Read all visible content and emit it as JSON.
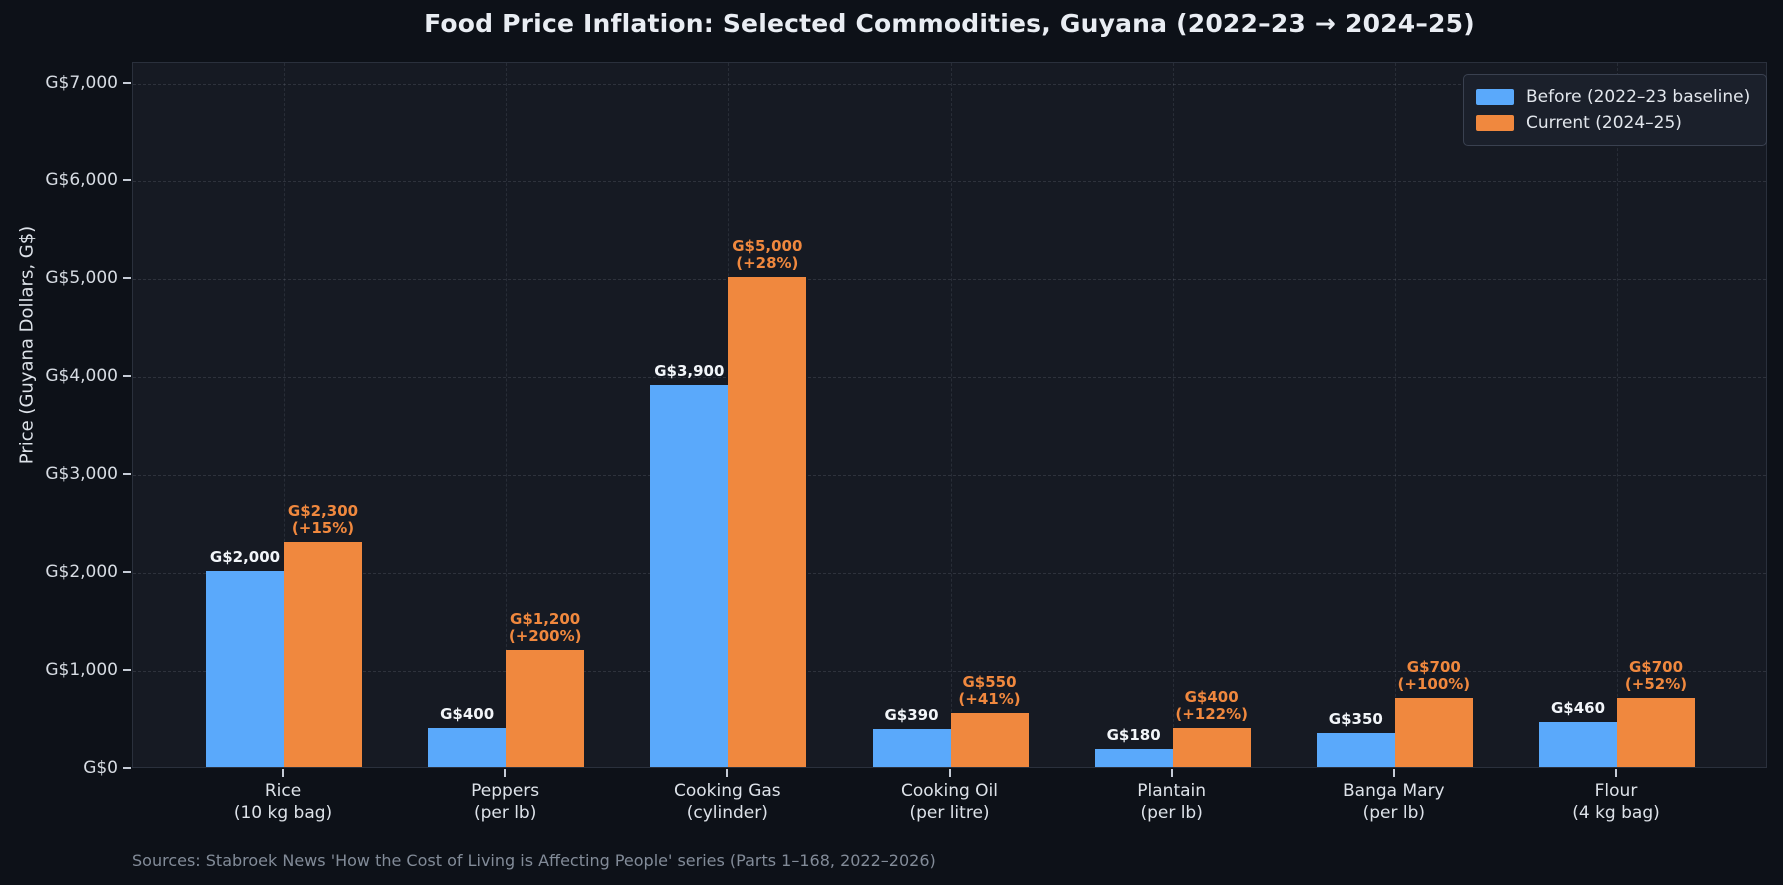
{
  "title": "Food Price Inflation: Selected Commodities, Guyana (2022–23 → 2024–25)",
  "y_axis_title": "Price (Guyana Dollars, G$)",
  "source": "Sources: Stabroek News 'How the Cost of Living is Affecting People' series (Parts 1–168, 2022–2026)",
  "colors": {
    "before": "#5aa9fb",
    "current": "#f0883e",
    "figure_bg": "#0d1118",
    "plot_bg": "#161a23",
    "value_label_before": "#f2f5f9",
    "value_label_current": "#f0883e"
  },
  "legend": {
    "items": [
      {
        "label": "Before (2022–23 baseline)",
        "color_key": "before"
      },
      {
        "label": "Current (2024–25)",
        "color_key": "current"
      }
    ],
    "position": "upper right"
  },
  "chart_data": {
    "type": "bar",
    "title": "Food Price Inflation: Selected Commodities, Guyana (2022–23 → 2024–25)",
    "xlabel": "",
    "ylabel": "Price (Guyana Dollars, G$)",
    "ylim": [
      0,
      7210
    ],
    "grid": true,
    "yticks": [
      {
        "value": 0,
        "label": "G$0"
      },
      {
        "value": 1000,
        "label": "G$1,000"
      },
      {
        "value": 2000,
        "label": "G$2,000"
      },
      {
        "value": 3000,
        "label": "G$3,000"
      },
      {
        "value": 4000,
        "label": "G$4,000"
      },
      {
        "value": 5000,
        "label": "G$5,000"
      },
      {
        "value": 6000,
        "label": "G$6,000"
      },
      {
        "value": 7000,
        "label": "G$7,000"
      }
    ],
    "series": [
      {
        "name": "Before (2022–23 baseline)",
        "values": [
          2000,
          400,
          3900,
          390,
          180,
          350,
          460
        ]
      },
      {
        "name": "Current (2024–25)",
        "values": [
          2300,
          1200,
          5000,
          550,
          400,
          700,
          700
        ]
      }
    ],
    "categories": [
      {
        "line1": "Rice",
        "line2": "(10 kg bag)",
        "before": 2000,
        "current": 2300,
        "before_label": "G$2,000",
        "current_label": "G$2,300",
        "pct_label": "(+15%)"
      },
      {
        "line1": "Peppers",
        "line2": "(per lb)",
        "before": 400,
        "current": 1200,
        "before_label": "G$400",
        "current_label": "G$1,200",
        "pct_label": "(+200%)"
      },
      {
        "line1": "Cooking Gas",
        "line2": "(cylinder)",
        "before": 3900,
        "current": 5000,
        "before_label": "G$3,900",
        "current_label": "G$5,000",
        "pct_label": "(+28%)"
      },
      {
        "line1": "Cooking Oil",
        "line2": "(per litre)",
        "before": 390,
        "current": 550,
        "before_label": "G$390",
        "current_label": "G$550",
        "pct_label": "(+41%)"
      },
      {
        "line1": "Plantain",
        "line2": "(per lb)",
        "before": 180,
        "current": 400,
        "before_label": "G$180",
        "current_label": "G$400",
        "pct_label": "(+122%)"
      },
      {
        "line1": "Banga Mary",
        "line2": "(per lb)",
        "before": 350,
        "current": 700,
        "before_label": "G$350",
        "current_label": "G$700",
        "pct_label": "(+100%)"
      },
      {
        "line1": "Flour",
        "line2": "(4 kg bag)",
        "before": 460,
        "current": 700,
        "before_label": "G$460",
        "current_label": "G$700",
        "pct_label": "(+52%)"
      }
    ]
  }
}
